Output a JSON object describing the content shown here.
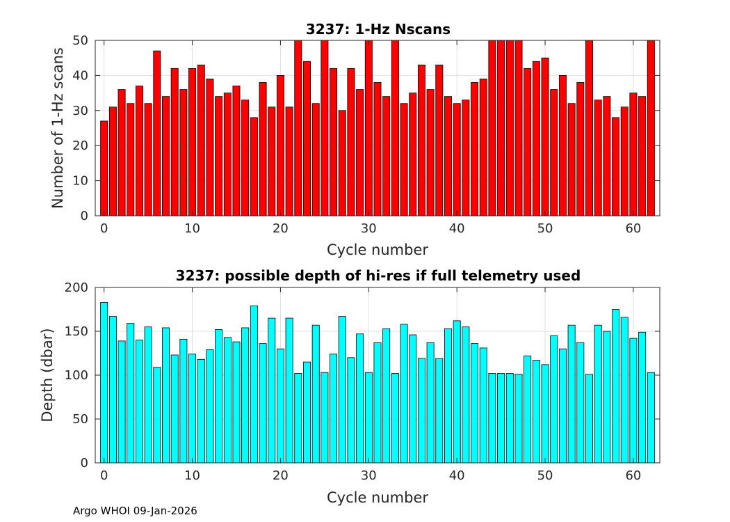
{
  "footer": "Argo WHOI 09-Jan-2026",
  "chart_data": [
    {
      "type": "bar",
      "title": "3237: 1-Hz Nscans",
      "xlabel": "Cycle number",
      "ylabel": "Number of 1-Hz scans",
      "xlim": [
        -1,
        63
      ],
      "ylim": [
        0,
        50
      ],
      "xticks": [
        0,
        10,
        20,
        30,
        40,
        50,
        60
      ],
      "yticks": [
        0,
        10,
        20,
        30,
        40,
        50
      ],
      "grid": true,
      "bar_color": "#ff0000",
      "x": [
        0,
        1,
        2,
        3,
        4,
        5,
        6,
        7,
        8,
        9,
        10,
        11,
        12,
        13,
        14,
        15,
        16,
        17,
        18,
        19,
        20,
        21,
        22,
        23,
        24,
        25,
        26,
        27,
        28,
        29,
        30,
        31,
        32,
        33,
        34,
        35,
        36,
        37,
        38,
        39,
        40,
        41,
        42,
        43,
        44,
        45,
        46,
        47,
        48,
        49,
        50,
        51,
        52,
        53,
        54,
        55,
        56,
        57,
        58,
        59,
        60,
        61,
        62
      ],
      "values": [
        27,
        31,
        36,
        32,
        37,
        32,
        47,
        34,
        42,
        36,
        42,
        43,
        39,
        34,
        35,
        37,
        33,
        28,
        38,
        31,
        40,
        31,
        50,
        44,
        32,
        50,
        42,
        30,
        42,
        36,
        50,
        38,
        34,
        50,
        32,
        35,
        43,
        36,
        43,
        34,
        32,
        33,
        38,
        39,
        50,
        50,
        50,
        50,
        42,
        44,
        45,
        36,
        40,
        32,
        38,
        50,
        33,
        34,
        28,
        31,
        35,
        34,
        50
      ]
    },
    {
      "type": "bar",
      "title": "3237: possible depth of hi-res if full telemetry used",
      "xlabel": "Cycle number",
      "ylabel": "Depth (dbar)",
      "xlim": [
        -1,
        63
      ],
      "ylim": [
        0,
        200
      ],
      "xticks": [
        0,
        10,
        20,
        30,
        40,
        50,
        60
      ],
      "yticks": [
        0,
        50,
        100,
        150,
        200
      ],
      "grid": true,
      "bar_color": "#00ffff",
      "x": [
        0,
        1,
        2,
        3,
        4,
        5,
        6,
        7,
        8,
        9,
        10,
        11,
        12,
        13,
        14,
        15,
        16,
        17,
        18,
        19,
        20,
        21,
        22,
        23,
        24,
        25,
        26,
        27,
        28,
        29,
        30,
        31,
        32,
        33,
        34,
        35,
        36,
        37,
        38,
        39,
        40,
        41,
        42,
        43,
        44,
        45,
        46,
        47,
        48,
        49,
        50,
        51,
        52,
        53,
        54,
        55,
        56,
        57,
        58,
        59,
        60,
        61,
        62
      ],
      "values": [
        183,
        167,
        139,
        159,
        140,
        155,
        109,
        154,
        123,
        141,
        124,
        118,
        129,
        152,
        143,
        138,
        154,
        179,
        136,
        165,
        130,
        165,
        102,
        115,
        157,
        103,
        124,
        167,
        120,
        147,
        103,
        137,
        153,
        102,
        158,
        146,
        119,
        137,
        119,
        153,
        162,
        155,
        136,
        131,
        102,
        102,
        102,
        101,
        122,
        117,
        112,
        145,
        130,
        157,
        137,
        101,
        157,
        150,
        175,
        166,
        142,
        149,
        103
      ]
    }
  ]
}
